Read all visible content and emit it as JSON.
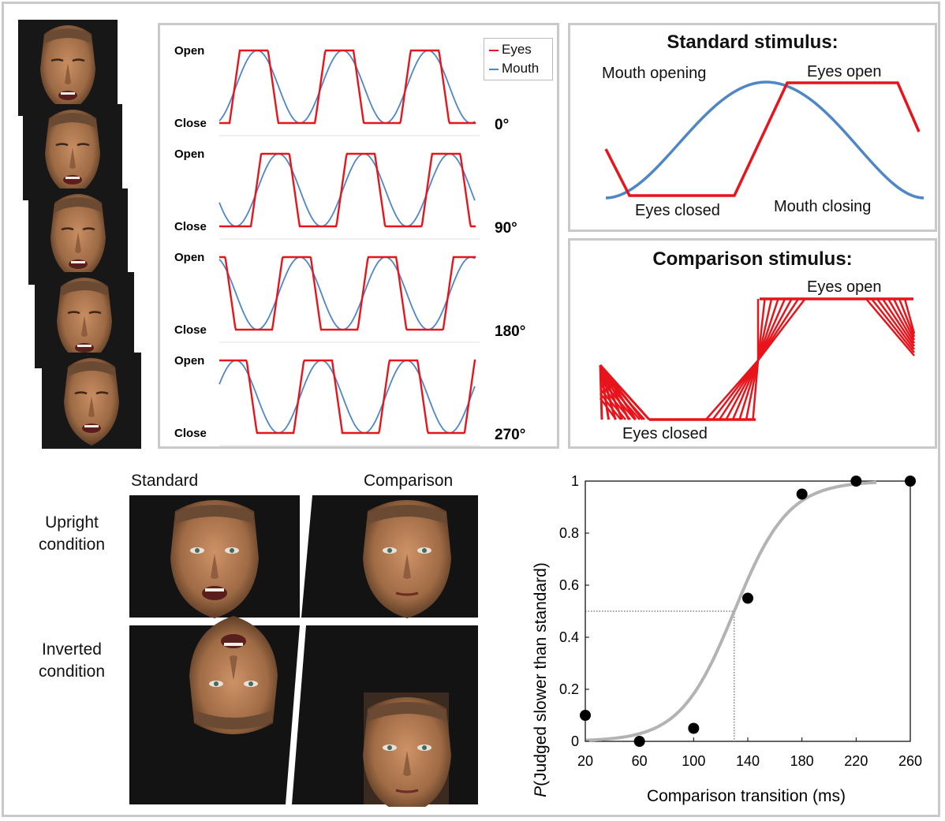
{
  "colors": {
    "eyes": "#e8141c",
    "mouth": "#4f86c6",
    "fit": "#b3b3b3",
    "panel_border": "#c9c9c9",
    "skin": "#b98058",
    "background_dark": "#131313"
  },
  "waveform_panel": {
    "open_label": "Open",
    "close_label": "Close",
    "legend": {
      "eyes": "Eyes",
      "mouth": "Mouth"
    },
    "phases": [
      "0°",
      "90°",
      "180°",
      "270°"
    ]
  },
  "standard_panel": {
    "title": "Standard stimulus:",
    "mouth_opening": "Mouth opening",
    "eyes_open": "Eyes open",
    "eyes_closed": "Eyes closed",
    "mouth_closing": "Mouth closing"
  },
  "comparison_panel": {
    "title": "Comparison stimulus:",
    "eyes_open": "Eyes open",
    "eyes_closed": "Eyes closed"
  },
  "conditions": {
    "standard_header": "Standard",
    "comparison_header": "Comparison",
    "upright": [
      "Upright",
      "condition"
    ],
    "inverted": [
      "Inverted",
      "condition"
    ]
  },
  "chart_data": {
    "type": "scatter",
    "xlabel": "Comparison transition (ms)",
    "ylabel_italic": "P",
    "ylabel_rest": "(Judged slower than standard)",
    "xlim": [
      20,
      260
    ],
    "ylim": [
      0,
      1
    ],
    "xticks": [
      "20",
      "60",
      "100",
      "140",
      "180",
      "220",
      "260"
    ],
    "yticks": [
      "0",
      "0.2",
      "0.4",
      "0.6",
      "0.8",
      "1"
    ],
    "points": [
      {
        "x": 20,
        "y": 0.1
      },
      {
        "x": 60,
        "y": 0.0
      },
      {
        "x": 100,
        "y": 0.05
      },
      {
        "x": 140,
        "y": 0.55
      },
      {
        "x": 180,
        "y": 0.95
      },
      {
        "x": 220,
        "y": 1.0
      },
      {
        "x": 260,
        "y": 1.0
      }
    ],
    "fit": {
      "type": "logistic",
      "pse": 130,
      "slope": 0.05
    },
    "pse_marker": {
      "x": 130,
      "y": 0.5
    }
  }
}
